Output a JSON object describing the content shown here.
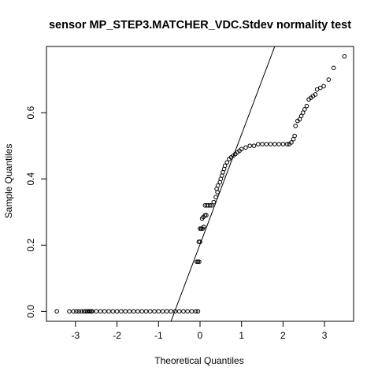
{
  "chart_data": {
    "type": "scatter",
    "title": "sensor MP_STEP3.MATCHER_VDC.Stdev normality test",
    "xlabel": "Theoretical Quantiles",
    "ylabel": "Sample Quantiles",
    "xlim": [
      -3.7,
      3.7
    ],
    "ylim": [
      -0.03,
      0.8
    ],
    "x_ticks": [
      -3,
      -2,
      -1,
      0,
      1,
      2,
      3
    ],
    "y_ticks": [
      0.0,
      0.2,
      0.4,
      0.6
    ],
    "x_tick_labels": [
      "-3",
      "-2",
      "-1",
      "0",
      "1",
      "2",
      "3"
    ],
    "y_tick_labels": [
      "0.0",
      "0.2",
      "0.4",
      "0.6"
    ],
    "grid": false,
    "legend": "none",
    "reference_line": {
      "points": [
        [
          -0.7,
          -0.03
        ],
        [
          1.8,
          0.8
        ]
      ]
    },
    "points": [
      [
        -3.45,
        0.0
      ],
      [
        -3.15,
        0.0
      ],
      [
        -3.05,
        0.0
      ],
      [
        -2.98,
        0.0
      ],
      [
        -2.92,
        0.0
      ],
      [
        -2.86,
        0.0
      ],
      [
        -2.8,
        0.0
      ],
      [
        -2.75,
        0.0
      ],
      [
        -2.71,
        0.0
      ],
      [
        -2.68,
        0.0
      ],
      [
        -2.65,
        0.0
      ],
      [
        -2.62,
        0.0
      ],
      [
        -2.6,
        0.0
      ],
      [
        -2.5,
        0.0
      ],
      [
        -2.4,
        0.0
      ],
      [
        -2.3,
        0.0
      ],
      [
        -2.2,
        0.0
      ],
      [
        -2.1,
        0.0
      ],
      [
        -2.0,
        0.0
      ],
      [
        -1.9,
        0.0
      ],
      [
        -1.8,
        0.0
      ],
      [
        -1.7,
        0.0
      ],
      [
        -1.6,
        0.0
      ],
      [
        -1.5,
        0.0
      ],
      [
        -1.4,
        0.0
      ],
      [
        -1.3,
        0.0
      ],
      [
        -1.2,
        0.0
      ],
      [
        -1.1,
        0.0
      ],
      [
        -1.0,
        0.0
      ],
      [
        -0.9,
        0.0
      ],
      [
        -0.8,
        0.0
      ],
      [
        -0.7,
        0.0
      ],
      [
        -0.6,
        0.0
      ],
      [
        -0.5,
        0.0
      ],
      [
        -0.4,
        0.0
      ],
      [
        -0.3,
        0.0
      ],
      [
        -0.2,
        0.0
      ],
      [
        -0.1,
        0.0
      ],
      [
        -0.05,
        0.0
      ],
      [
        -0.08,
        0.15
      ],
      [
        -0.05,
        0.15
      ],
      [
        -0.02,
        0.15
      ],
      [
        -0.03,
        0.21
      ],
      [
        0.0,
        0.21
      ],
      [
        0.0,
        0.25
      ],
      [
        0.03,
        0.25
      ],
      [
        0.06,
        0.25
      ],
      [
        0.09,
        0.255
      ],
      [
        0.05,
        0.28
      ],
      [
        0.08,
        0.285
      ],
      [
        0.12,
        0.29
      ],
      [
        0.15,
        0.29
      ],
      [
        0.12,
        0.32
      ],
      [
        0.16,
        0.32
      ],
      [
        0.2,
        0.32
      ],
      [
        0.24,
        0.32
      ],
      [
        0.28,
        0.32
      ],
      [
        0.33,
        0.33
      ],
      [
        0.38,
        0.345
      ],
      [
        0.42,
        0.36
      ],
      [
        0.4,
        0.37
      ],
      [
        0.43,
        0.38
      ],
      [
        0.48,
        0.39
      ],
      [
        0.5,
        0.4
      ],
      [
        0.53,
        0.41
      ],
      [
        0.55,
        0.42
      ],
      [
        0.58,
        0.43
      ],
      [
        0.6,
        0.44
      ],
      [
        0.65,
        0.45
      ],
      [
        0.7,
        0.46
      ],
      [
        0.75,
        0.465
      ],
      [
        0.8,
        0.47
      ],
      [
        0.85,
        0.475
      ],
      [
        0.9,
        0.48
      ],
      [
        0.95,
        0.485
      ],
      [
        1.0,
        0.49
      ],
      [
        1.1,
        0.495
      ],
      [
        1.2,
        0.5
      ],
      [
        1.3,
        0.5
      ],
      [
        1.4,
        0.505
      ],
      [
        1.5,
        0.505
      ],
      [
        1.6,
        0.505
      ],
      [
        1.7,
        0.505
      ],
      [
        1.8,
        0.505
      ],
      [
        1.9,
        0.505
      ],
      [
        2.0,
        0.505
      ],
      [
        2.1,
        0.505
      ],
      [
        2.15,
        0.505
      ],
      [
        2.2,
        0.51
      ],
      [
        2.25,
        0.52
      ],
      [
        2.28,
        0.53
      ],
      [
        2.3,
        0.56
      ],
      [
        2.35,
        0.575
      ],
      [
        2.4,
        0.58
      ],
      [
        2.44,
        0.59
      ],
      [
        2.48,
        0.6
      ],
      [
        2.52,
        0.61
      ],
      [
        2.57,
        0.62
      ],
      [
        2.62,
        0.64
      ],
      [
        2.67,
        0.645
      ],
      [
        2.72,
        0.65
      ],
      [
        2.78,
        0.655
      ],
      [
        2.82,
        0.67
      ],
      [
        2.9,
        0.675
      ],
      [
        2.98,
        0.68
      ],
      [
        3.1,
        0.7
      ],
      [
        3.22,
        0.735
      ],
      [
        3.48,
        0.77
      ]
    ]
  }
}
